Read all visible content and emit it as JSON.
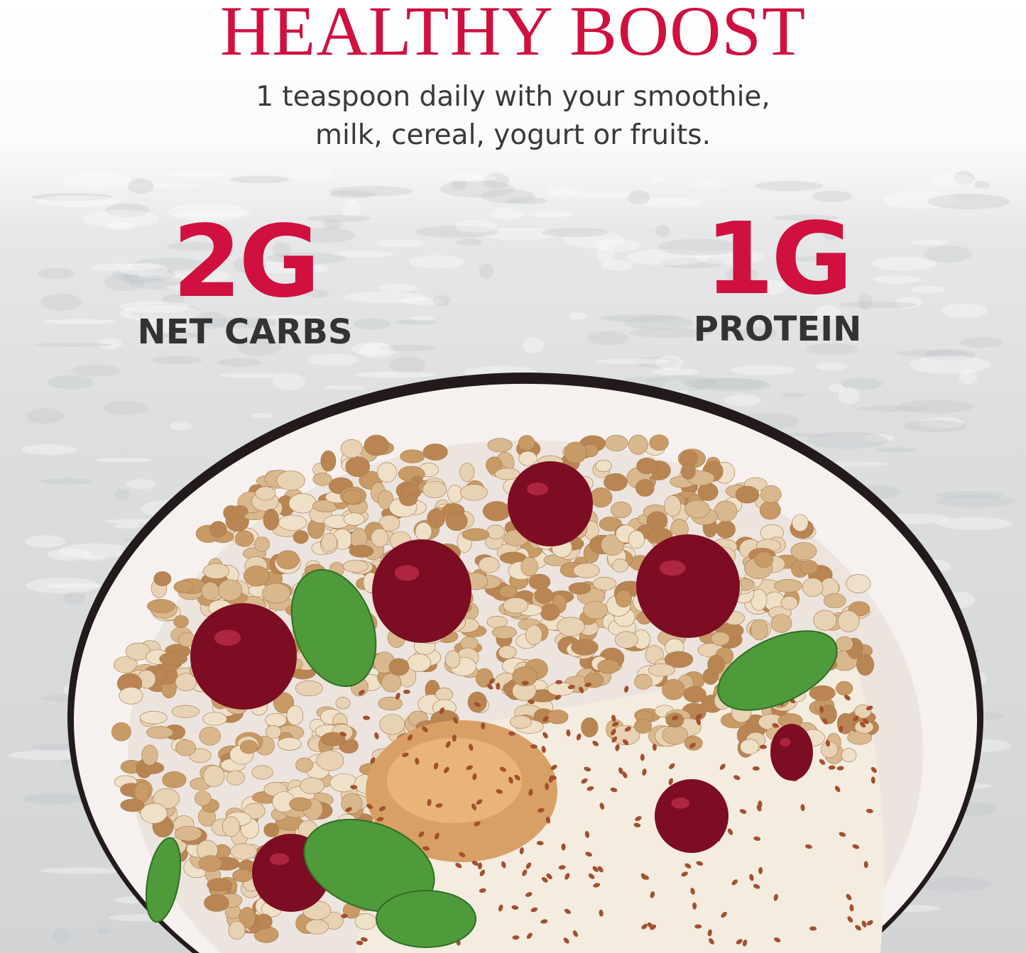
{
  "header": {
    "title": "HEALTHY BOOST",
    "subtitle_line1": "1 teaspoon daily with your smoothie,",
    "subtitle_line2": "milk, cereal, yogurt or fruits."
  },
  "stats": [
    {
      "value": "2G",
      "label": "NET CARBS"
    },
    {
      "value": "1G",
      "label": "PROTEIN"
    }
  ],
  "colors": {
    "accent": "#d0103f",
    "text": "#333333"
  },
  "image": {
    "subject": "granola bowl with cherries, mint, peanut butter and flax seeds"
  }
}
